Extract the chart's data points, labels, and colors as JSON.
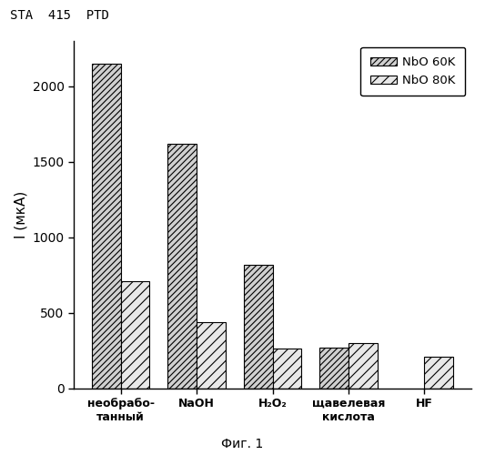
{
  "categories": [
    "необрабо-\nтанный",
    "NaOH",
    "H₂O₂",
    "щавелевая\nкислота",
    "HF"
  ],
  "nbo60k": [
    2150,
    1620,
    820,
    270,
    null
  ],
  "nbo80k": [
    710,
    440,
    265,
    300,
    210
  ],
  "ylabel": "I (мкА)",
  "ylim": [
    0,
    2300
  ],
  "yticks": [
    0,
    500,
    1000,
    1500,
    2000
  ],
  "legend_labels": [
    "NbO 60K",
    "NbO 80K"
  ],
  "edge_color": "#000000",
  "title_text": "STA  415  PTD",
  "caption": "Фиг. 1",
  "background_color": "#ffffff",
  "bar_width": 0.38,
  "figsize": [
    5.33,
    5.0
  ],
  "dpi": 100
}
